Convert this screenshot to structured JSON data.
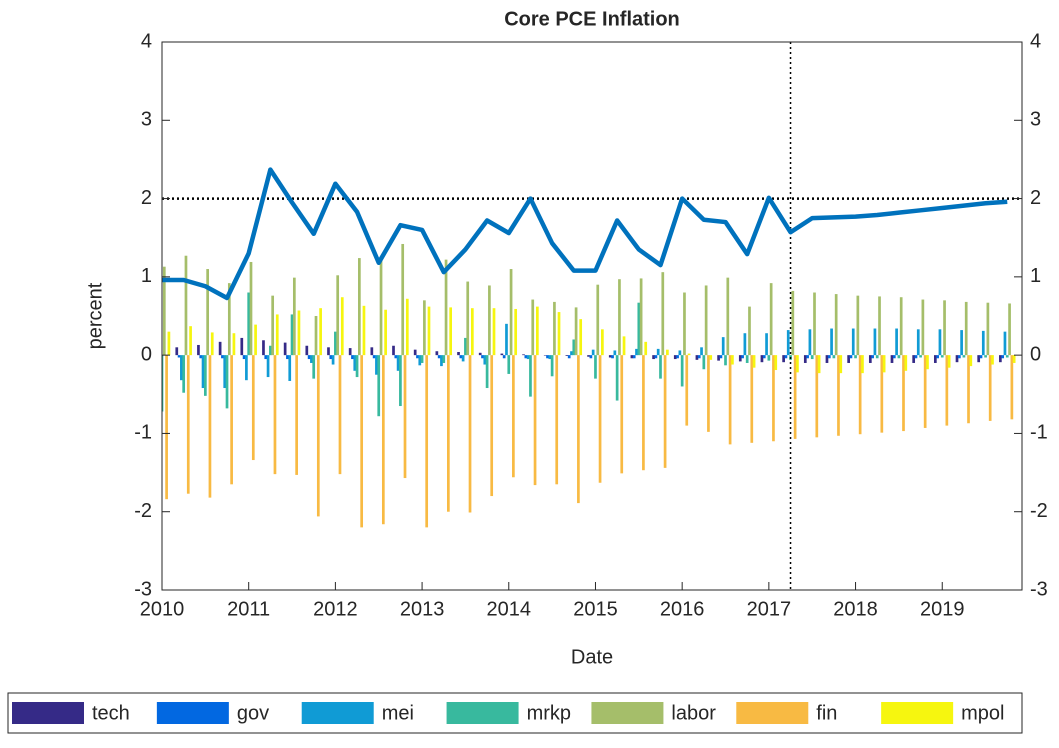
{
  "chart_data": {
    "type": "bar",
    "title": "Core PCE Inflation",
    "x_label": "Date",
    "y_label": "percent",
    "x": [
      2010,
      2010.25,
      2010.5,
      2010.75,
      2011,
      2011.25,
      2011.5,
      2011.75,
      2012,
      2012.25,
      2012.5,
      2012.75,
      2013,
      2013.25,
      2013.5,
      2013.75,
      2014,
      2014.25,
      2014.5,
      2014.75,
      2015,
      2015.25,
      2015.5,
      2015.75,
      2016,
      2016.25,
      2016.5,
      2016.75,
      2017,
      2017.25,
      2017.5,
      2017.75,
      2018,
      2018.25,
      2018.5,
      2018.75,
      2019,
      2019.25,
      2019.5,
      2019.75
    ],
    "xlim": [
      2010,
      2019.92
    ],
    "xticks": [
      2010,
      2011,
      2012,
      2013,
      2014,
      2015,
      2016,
      2017,
      2018,
      2019
    ],
    "ylim": [
      -3,
      4
    ],
    "yticks": [
      -3,
      -2,
      -1,
      0,
      1,
      2,
      3,
      4
    ],
    "y2lim": [
      -3,
      4
    ],
    "y2ticks": [
      -3,
      -2,
      -1,
      0,
      1,
      2,
      3,
      4
    ],
    "reference_lines": {
      "y": 2,
      "x": 2017.25
    },
    "series": [
      {
        "name": "tech",
        "color": "#352a87",
        "values": [
          0.1,
          0.1,
          0.13,
          0.17,
          0.22,
          0.19,
          0.16,
          0.12,
          0.1,
          0.09,
          0.1,
          0.12,
          0.07,
          0.05,
          0.04,
          0.03,
          0.02,
          0.01,
          0,
          -0.01,
          -0.02,
          -0.03,
          -0.04,
          -0.05,
          -0.05,
          -0.06,
          -0.07,
          -0.08,
          -0.09,
          -0.09,
          -0.1,
          -0.1,
          -0.1,
          -0.1,
          -0.1,
          -0.1,
          -0.1,
          -0.09,
          -0.09,
          -0.09
        ]
      },
      {
        "name": "gov",
        "color": "#0268e1",
        "values": [
          -0.03,
          -0.03,
          -0.04,
          -0.04,
          -0.05,
          -0.05,
          -0.05,
          -0.05,
          -0.05,
          -0.05,
          -0.04,
          -0.04,
          -0.04,
          -0.04,
          -0.04,
          -0.04,
          -0.04,
          -0.04,
          -0.04,
          -0.04,
          -0.04,
          -0.04,
          -0.04,
          -0.04,
          -0.04,
          -0.04,
          -0.04,
          -0.04,
          -0.04,
          -0.04,
          -0.04,
          -0.04,
          -0.04,
          -0.04,
          -0.04,
          -0.04,
          -0.04,
          -0.04,
          -0.04,
          -0.04
        ]
      },
      {
        "name": "mei",
        "color": "#109bd5",
        "values": [
          -0.24,
          -0.32,
          -0.42,
          -0.42,
          -0.32,
          -0.28,
          -0.33,
          -0.1,
          -0.12,
          -0.2,
          -0.25,
          -0.2,
          -0.13,
          -0.14,
          -0.08,
          -0.12,
          0.4,
          -0.05,
          -0.05,
          0.05,
          0.07,
          0.06,
          0.08,
          0.08,
          0.06,
          0.1,
          0.23,
          0.28,
          0.28,
          0.32,
          0.33,
          0.34,
          0.34,
          0.34,
          0.34,
          0.33,
          0.33,
          0.32,
          0.31,
          0.3
        ]
      },
      {
        "name": "mrkp",
        "color": "#38b99e",
        "values": [
          -0.72,
          -0.48,
          -0.52,
          -0.68,
          0.8,
          0.12,
          0.52,
          -0.3,
          0.3,
          -0.28,
          -0.78,
          -0.65,
          -0.1,
          -0.1,
          0.22,
          -0.42,
          -0.24,
          -0.53,
          -0.27,
          0.2,
          -0.3,
          -0.58,
          0.67,
          -0.3,
          -0.4,
          -0.18,
          -0.13,
          -0.1,
          -0.07,
          -0.06,
          -0.05,
          -0.04,
          -0.04,
          -0.04,
          -0.04,
          -0.03,
          -0.03,
          -0.03,
          -0.03,
          -0.03
        ]
      },
      {
        "name": "labor",
        "color": "#a5be6a",
        "values": [
          1.13,
          1.27,
          1.1,
          0.92,
          1.19,
          0.76,
          0.99,
          0.5,
          1.02,
          1.24,
          1.25,
          1.42,
          0.7,
          1.22,
          0.94,
          0.89,
          1.1,
          0.71,
          0.68,
          0.61,
          0.9,
          0.97,
          0.98,
          1.06,
          0.8,
          0.89,
          0.99,
          0.62,
          0.92,
          0.82,
          0.8,
          0.78,
          0.76,
          0.75,
          0.74,
          0.71,
          0.7,
          0.68,
          0.67,
          0.66
        ]
      },
      {
        "name": "fin",
        "color": "#f8ba43",
        "values": [
          -1.84,
          -1.77,
          -1.82,
          -1.65,
          -1.34,
          -1.52,
          -1.53,
          -2.06,
          -1.52,
          -2.2,
          -2.16,
          -1.57,
          -2.2,
          -2.0,
          -2.01,
          -1.8,
          -1.56,
          -1.66,
          -1.65,
          -1.89,
          -1.63,
          -1.51,
          -1.47,
          -1.44,
          -0.9,
          -0.98,
          -1.14,
          -1.12,
          -1.1,
          -1.07,
          -1.05,
          -1.03,
          -1.01,
          -0.99,
          -0.97,
          -0.93,
          -0.9,
          -0.87,
          -0.84,
          -0.82
        ]
      },
      {
        "name": "mpol",
        "color": "#f6f60f",
        "values": [
          0.3,
          0.37,
          0.29,
          0.28,
          0.39,
          0.52,
          0.57,
          0.6,
          0.74,
          0.63,
          0.58,
          0.72,
          0.62,
          0.61,
          0.6,
          0.6,
          0.59,
          0.62,
          0.55,
          0.46,
          0.33,
          0.24,
          0.17,
          0.07,
          0.02,
          -0.06,
          -0.12,
          -0.16,
          -0.19,
          -0.22,
          -0.23,
          -0.23,
          -0.23,
          -0.22,
          -0.2,
          -0.18,
          -0.16,
          -0.14,
          -0.12,
          -0.1
        ]
      }
    ],
    "line": {
      "color": "#0072bd",
      "values": [
        0.96,
        0.96,
        0.88,
        0.73,
        1.3,
        2.37,
        1.95,
        1.55,
        2.19,
        1.83,
        1.18,
        1.66,
        1.6,
        1.06,
        1.35,
        1.72,
        1.56,
        2.0,
        1.43,
        1.08,
        1.08,
        1.72,
        1.35,
        1.15,
        2.0,
        1.73,
        1.7,
        1.29,
        2.01,
        1.57,
        1.75,
        1.76,
        1.77,
        1.79,
        1.82,
        1.85,
        1.88,
        1.91,
        1.94,
        1.96
      ]
    }
  }
}
